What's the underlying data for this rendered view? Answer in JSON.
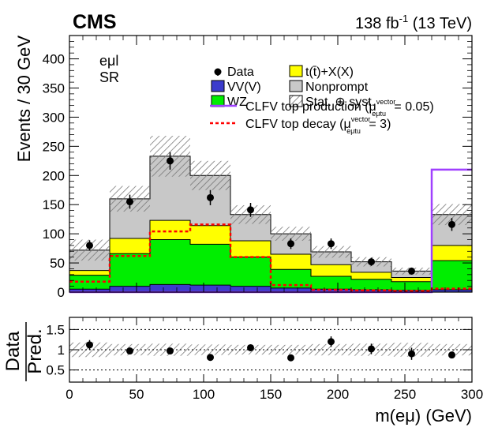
{
  "header": {
    "experiment": "CMS",
    "lumi_prefix": "138 fb",
    "lumi_exp": "-1",
    "lumi_suffix": " (13 TeV)"
  },
  "region": {
    "channel": "eμl",
    "label": "SR"
  },
  "colors": {
    "vv": "#3c3ccc",
    "wz": "#00ee00",
    "ttx": "#ffff00",
    "nonprompt": "#c8c8c8",
    "clfv_prod": "#a040ff",
    "clfv_decay": "#ff0000",
    "unc_hatch": "#888888"
  },
  "legend": {
    "data": "Data",
    "vv": "VV(V)",
    "wz": "WZ",
    "ttx": "t(t̄)+X(X)",
    "nonprompt": "Nonprompt",
    "unc": "Stat. ⊕ syst.",
    "clfv_prod_main": "CLFV top production (μ",
    "clfv_prod_sup": "vector",
    "clfv_prod_sub": "eμtu",
    "clfv_prod_tail": " = 0.05)",
    "clfv_decay_main": "CLFV top decay (μ",
    "clfv_decay_sup": "vector",
    "clfv_decay_sub": "eμtu",
    "clfv_decay_tail": " = 3)"
  },
  "chart_data": {
    "type": "bar",
    "title": "",
    "xlabel": "m(eμ) (GeV)",
    "ylabel": "Events / 30 GeV",
    "xlim": [
      0,
      300
    ],
    "ylim": [
      0,
      440
    ],
    "bin_edges": [
      0,
      30,
      60,
      90,
      120,
      150,
      180,
      210,
      240,
      270,
      300
    ],
    "x_ticks": [
      "0",
      "50",
      "100",
      "150",
      "200",
      "250",
      "300"
    ],
    "y_ticks": [
      "0",
      "50",
      "100",
      "150",
      "200",
      "250",
      "300",
      "350",
      "400"
    ],
    "series": [
      {
        "name": "VV(V)",
        "values": [
          5,
          10,
          13,
          12,
          10,
          7,
          5,
          4,
          3,
          4
        ]
      },
      {
        "name": "WZ",
        "values": [
          24,
          56,
          77,
          70,
          50,
          32,
          22,
          18,
          15,
          50
        ]
      },
      {
        "name": "t(t̄)+X(X)",
        "values": [
          8,
          26,
          33,
          32,
          28,
          26,
          20,
          12,
          7,
          26
        ]
      },
      {
        "name": "Nonprompt",
        "values": [
          35,
          68,
          110,
          86,
          45,
          35,
          22,
          18,
          11,
          53
        ]
      }
    ],
    "stack_total": [
      72,
      160,
      233,
      200,
      133,
      100,
      69,
      52,
      36,
      133
    ],
    "uncertainty": [
      18,
      22,
      35,
      25,
      16,
      12,
      10,
      8,
      6,
      18
    ],
    "data": {
      "x": [
        15,
        45,
        75,
        105,
        135,
        165,
        195,
        225,
        255,
        285
      ],
      "y": [
        80,
        155,
        225,
        162,
        141,
        83,
        83,
        52,
        36,
        116
      ],
      "yerr": [
        9,
        12,
        15,
        13,
        12,
        9,
        9,
        7,
        6,
        11
      ]
    },
    "signal_production": {
      "name": "CLFV top production",
      "values": [
        0,
        0,
        0,
        0,
        0,
        0,
        0,
        0,
        0,
        210
      ]
    },
    "signal_decay": {
      "name": "CLFV top decay",
      "values": [
        18,
        62,
        104,
        116,
        60,
        12,
        4,
        3,
        2,
        6
      ]
    },
    "ratio": {
      "ylabel_top": "Data",
      "ylabel_bottom": "Pred.",
      "ylim": [
        0.2,
        1.8
      ],
      "y_ticks": [
        "0.5",
        "1",
        "1.5"
      ],
      "values": [
        1.12,
        0.97,
        0.97,
        0.81,
        1.05,
        0.8,
        1.2,
        1.02,
        0.9,
        0.87
      ],
      "errors": [
        0.12,
        0.07,
        0.06,
        0.06,
        0.08,
        0.08,
        0.13,
        0.13,
        0.15,
        0.08
      ],
      "unc_band": [
        0.18,
        0.14,
        0.15,
        0.13,
        0.12,
        0.12,
        0.14,
        0.15,
        0.17,
        0.14
      ]
    }
  }
}
